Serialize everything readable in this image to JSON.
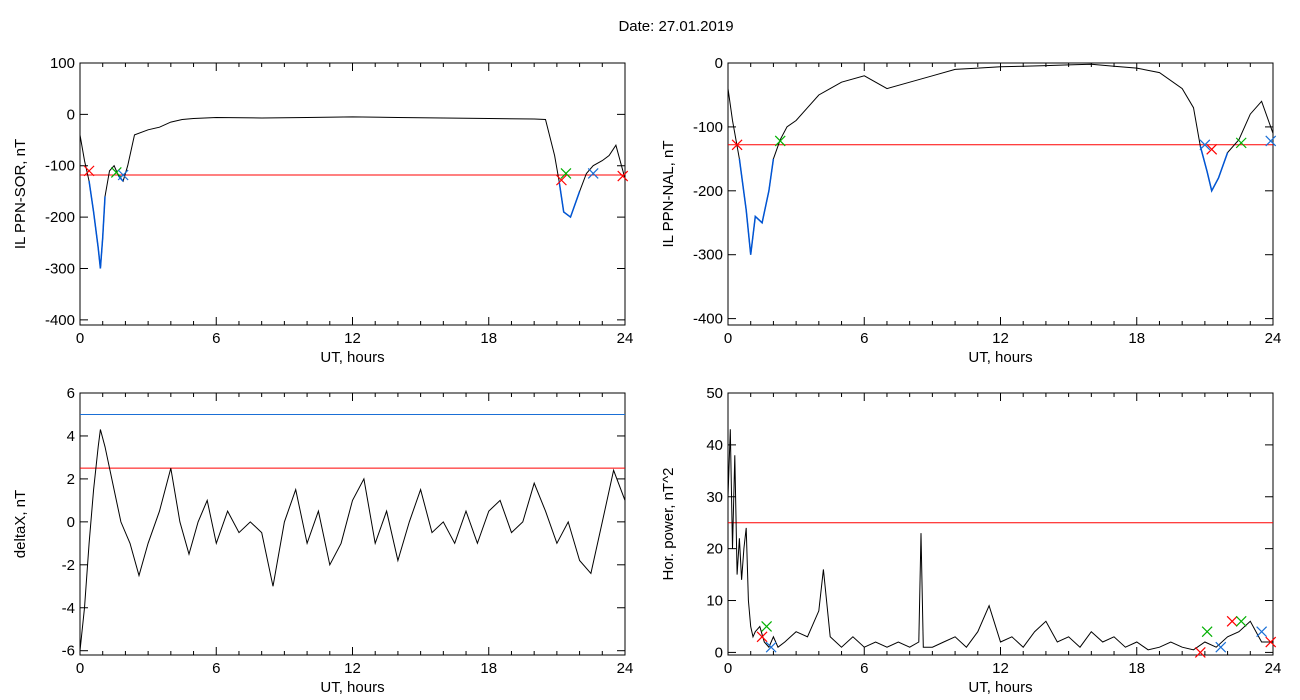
{
  "title": "Date:  27.01.2019",
  "colors": {
    "trace": "#000000",
    "threshold": "#ff0000",
    "highlight": "#0055d4",
    "level2": "#1a6fd6",
    "marker_red": "#ff0000",
    "marker_green": "#00b000",
    "marker_blue": "#1a6fd6"
  },
  "chart_data": [
    {
      "type": "line",
      "name": "panel-sor",
      "xlabel": "UT, hours",
      "ylabel": "IL PPN-SOR, nT",
      "xlim": [
        0,
        24
      ],
      "ylim": [
        -410,
        100
      ],
      "xticks": [
        0,
        6,
        12,
        18,
        24
      ],
      "yticks": [
        100,
        0,
        -100,
        -200,
        -300,
        -400
      ],
      "threshold": -118,
      "series": [
        {
          "x": [
            0,
            0.2,
            0.4,
            0.6,
            0.8,
            0.9,
            1.0,
            1.1,
            1.3,
            1.5,
            1.7,
            1.9,
            2.1,
            2.4,
            3,
            3.5,
            4,
            4.5,
            5,
            6,
            8,
            10,
            12,
            14,
            16,
            18,
            20,
            20.5,
            20.9,
            21.1,
            21.3,
            21.6,
            22,
            22.3,
            22.6,
            23,
            23.3,
            23.6,
            24
          ],
          "y": [
            -40,
            -90,
            -130,
            -190,
            -260,
            -300,
            -240,
            -160,
            -110,
            -100,
            -120,
            -130,
            -100,
            -40,
            -30,
            -25,
            -15,
            -10,
            -8,
            -6,
            -7,
            -6,
            -5,
            -6,
            -7,
            -8,
            -9,
            -10,
            -80,
            -130,
            -190,
            -200,
            -150,
            -115,
            -100,
            -90,
            -80,
            -60,
            -125
          ]
        }
      ],
      "markers": [
        {
          "x": 0.4,
          "y": -110
        },
        {
          "x": 1.6,
          "y": -113
        },
        {
          "x": 1.9,
          "y": -118
        },
        {
          "x": 21.2,
          "y": -128
        },
        {
          "x": 21.4,
          "y": -115
        },
        {
          "x": 22.6,
          "y": -115
        },
        {
          "x": 23.9,
          "y": -120
        }
      ]
    },
    {
      "type": "line",
      "name": "panel-nal",
      "xlabel": "UT, hours",
      "ylabel": "IL PPN-NAL, nT",
      "xlim": [
        0,
        24
      ],
      "ylim": [
        -410,
        0
      ],
      "xticks": [
        0,
        6,
        12,
        18,
        24
      ],
      "yticks": [
        0,
        -100,
        -200,
        -300,
        -400
      ],
      "threshold": -128,
      "series": [
        {
          "x": [
            0,
            0.2,
            0.5,
            0.8,
            1.0,
            1.2,
            1.5,
            1.8,
            2.0,
            2.3,
            2.6,
            3,
            3.5,
            4,
            4.5,
            5,
            6,
            7,
            8,
            9,
            10,
            11,
            12,
            13,
            14,
            15,
            16,
            17,
            18,
            19,
            20,
            20.5,
            20.8,
            21.1,
            21.3,
            21.6,
            22,
            22.5,
            23,
            23.5,
            24
          ],
          "y": [
            -40,
            -90,
            -150,
            -230,
            -300,
            -240,
            -250,
            -200,
            -150,
            -120,
            -100,
            -90,
            -70,
            -50,
            -40,
            -30,
            -20,
            -40,
            -30,
            -20,
            -10,
            -8,
            -6,
            -5,
            -4,
            -3,
            -2,
            -5,
            -8,
            -15,
            -40,
            -70,
            -130,
            -170,
            -200,
            -180,
            -140,
            -120,
            -80,
            -60,
            -110
          ]
        }
      ],
      "markers": [
        {
          "x": 0.4,
          "y": -128
        },
        {
          "x": 2.3,
          "y": -122
        },
        {
          "x": 21.0,
          "y": -128
        },
        {
          "x": 21.3,
          "y": -135
        },
        {
          "x": 22.6,
          "y": -125
        },
        {
          "x": 23.9,
          "y": -122
        }
      ]
    },
    {
      "type": "line",
      "name": "panel-deltax",
      "xlabel": "UT, hours",
      "ylabel": "deltaX, nT",
      "xlim": [
        0,
        24
      ],
      "ylim": [
        -6.2,
        6
      ],
      "xticks": [
        0,
        6,
        12,
        18,
        24
      ],
      "yticks": [
        6,
        4,
        2,
        0,
        -2,
        -4,
        -6
      ],
      "threshold": 2.5,
      "threshold2": 5.0,
      "series": [
        {
          "x": [
            0,
            0.2,
            0.4,
            0.6,
            0.8,
            0.9,
            1.1,
            1.4,
            1.8,
            2.2,
            2.6,
            3.0,
            3.5,
            4.0,
            4.4,
            4.8,
            5.2,
            5.6,
            6,
            6.5,
            7,
            7.5,
            8,
            8.5,
            9,
            9.5,
            10,
            10.5,
            11,
            11.5,
            12,
            12.5,
            13,
            13.5,
            14,
            14.5,
            15,
            15.5,
            16,
            16.5,
            17,
            17.5,
            18,
            18.5,
            19,
            19.5,
            20,
            20.5,
            21,
            21.5,
            22,
            22.5,
            23,
            23.5,
            24
          ],
          "y": [
            -6,
            -4,
            -1,
            1.5,
            3.5,
            4.3,
            3.5,
            2,
            0,
            -1,
            -2.5,
            -1,
            0.5,
            2.5,
            0,
            -1.5,
            0,
            1,
            -1,
            0.5,
            -0.5,
            0,
            -0.5,
            -3,
            0,
            1.5,
            -1,
            0.5,
            -2,
            -1,
            1,
            2,
            -1,
            0.5,
            -1.8,
            0,
            1.5,
            -0.5,
            0,
            -1,
            0.5,
            -1,
            0.5,
            1,
            -0.5,
            0,
            1.8,
            0.5,
            -1,
            0,
            -1.8,
            -2.4,
            0,
            2.4,
            1
          ]
        }
      ]
    },
    {
      "type": "line",
      "name": "panel-hor-power",
      "xlabel": "UT, hours",
      "ylabel": "Hor. power, nT^2",
      "xlim": [
        0,
        24
      ],
      "ylim": [
        -0.5,
        50
      ],
      "xticks": [
        0,
        6,
        12,
        18,
        24
      ],
      "yticks": [
        50,
        40,
        30,
        20,
        10,
        0
      ],
      "threshold": 25,
      "series": [
        {
          "x": [
            0,
            0.1,
            0.2,
            0.3,
            0.4,
            0.5,
            0.6,
            0.7,
            0.8,
            0.9,
            1.0,
            1.1,
            1.2,
            1.4,
            1.6,
            1.8,
            2.0,
            2.2,
            2.5,
            3,
            3.5,
            4,
            4.2,
            4.5,
            5,
            5.5,
            6,
            6.5,
            7,
            7.5,
            8,
            8.4,
            8.5,
            8.6,
            9,
            9.5,
            10,
            10.5,
            11,
            11.5,
            12,
            12.5,
            13,
            13.5,
            14,
            14.5,
            15,
            15.5,
            16,
            16.5,
            17,
            17.5,
            18,
            18.5,
            19,
            19.5,
            20,
            20.5,
            21,
            21.5,
            22,
            22.5,
            23,
            23.5,
            24
          ],
          "y": [
            30,
            43,
            20,
            38,
            15,
            22,
            14,
            20,
            24,
            10,
            5,
            3,
            4,
            5,
            2,
            1,
            3,
            1,
            2,
            4,
            3,
            8,
            16,
            3,
            1,
            3,
            1,
            2,
            1,
            2,
            1,
            2,
            23,
            1,
            1,
            2,
            3,
            1,
            4,
            9,
            2,
            3,
            1,
            4,
            6,
            2,
            3,
            1,
            4,
            2,
            3,
            1,
            2,
            0.5,
            1,
            2,
            1,
            0.5,
            2,
            1,
            3,
            4,
            6,
            2,
            2
          ]
        }
      ],
      "markers": [
        {
          "x": 1.5,
          "y": 3
        },
        {
          "x": 1.7,
          "y": 5
        },
        {
          "x": 1.9,
          "y": 1
        },
        {
          "x": 20.8,
          "y": 0
        },
        {
          "x": 21.1,
          "y": 4
        },
        {
          "x": 21.7,
          "y": 1
        },
        {
          "x": 22.2,
          "y": 6
        },
        {
          "x": 22.6,
          "y": 6
        },
        {
          "x": 23.5,
          "y": 4
        },
        {
          "x": 23.9,
          "y": 2
        }
      ]
    }
  ]
}
